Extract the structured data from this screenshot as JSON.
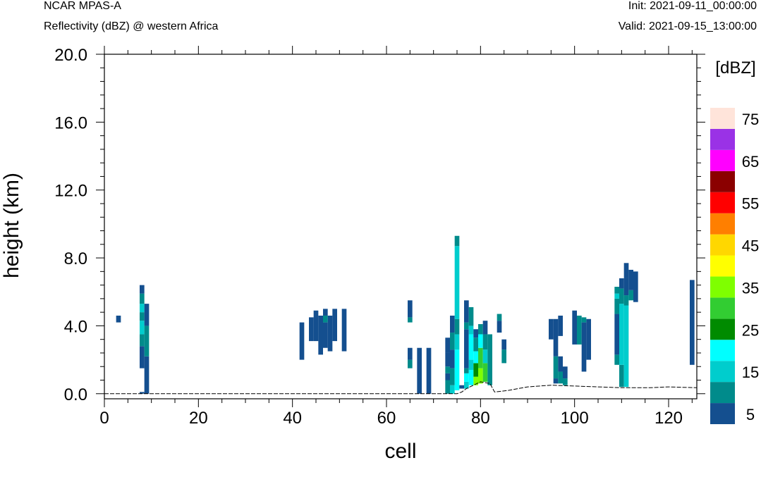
{
  "header": {
    "model": "NCAR MPAS-A",
    "subtitle": "Reflectivity (dBZ) @ western Africa",
    "init": "Init: 2021-09-11_00:00:00",
    "valid": "Valid: 2021-09-15_13:00:00"
  },
  "chart_data": {
    "type": "heatmap",
    "xlabel": "cell",
    "ylabel": "height (km)",
    "xlim": [
      0,
      126
    ],
    "ylim": [
      -0.3,
      20.0
    ],
    "x_ticks": [
      "0",
      "20",
      "40",
      "60",
      "80",
      "100",
      "120"
    ],
    "y_ticks": [
      "0.0",
      "4.0",
      "8.0",
      "12.0",
      "16.0",
      "20.0"
    ],
    "grid": false,
    "legend": {
      "title": "[dBZ]",
      "placement": "right",
      "labels": [
        "5",
        "15",
        "25",
        "35",
        "45",
        "55",
        "65",
        "75"
      ],
      "bins": [
        {
          "range": [
            0,
            10
          ],
          "color": "#144f8f"
        },
        {
          "range": [
            10,
            15
          ],
          "color": "#008b8b"
        },
        {
          "range": [
            15,
            20
          ],
          "color": "#00cdcd"
        },
        {
          "range": [
            20,
            25
          ],
          "color": "#00ffff"
        },
        {
          "range": [
            25,
            30
          ],
          "color": "#008b00"
        },
        {
          "range": [
            30,
            35
          ],
          "color": "#32cd32"
        },
        {
          "range": [
            35,
            40
          ],
          "color": "#7fff00"
        },
        {
          "range": [
            40,
            45
          ],
          "color": "#ffff00"
        },
        {
          "range": [
            45,
            50
          ],
          "color": "#ffd700"
        },
        {
          "range": [
            50,
            55
          ],
          "color": "#ff7f00"
        },
        {
          "range": [
            55,
            60
          ],
          "color": "#ff0000"
        },
        {
          "range": [
            60,
            65
          ],
          "color": "#8b0000"
        },
        {
          "range": [
            65,
            70
          ],
          "color": "#ff00ff"
        },
        {
          "range": [
            70,
            75
          ],
          "color": "#9a32e6"
        },
        {
          "range": [
            75,
            80
          ],
          "color": "#ffe4da"
        }
      ]
    },
    "columns": [
      {
        "cell": 3,
        "segments": [
          [
            4.2,
            4.6,
            0
          ]
        ]
      },
      {
        "cell": 8,
        "segments": [
          [
            0.0,
            0.1,
            0
          ],
          [
            1.5,
            2.8,
            0
          ],
          [
            2.8,
            3.5,
            10
          ],
          [
            3.5,
            4.3,
            15
          ],
          [
            4.3,
            4.8,
            10
          ],
          [
            4.8,
            5.3,
            15
          ],
          [
            5.3,
            5.9,
            10
          ],
          [
            5.9,
            6.4,
            0
          ]
        ]
      },
      {
        "cell": 9,
        "segments": [
          [
            0.0,
            2.2,
            0
          ],
          [
            2.2,
            4.0,
            10
          ],
          [
            4.0,
            5.3,
            0
          ]
        ]
      },
      {
        "cell": 42,
        "segments": [
          [
            2.0,
            4.2,
            0
          ]
        ]
      },
      {
        "cell": 44,
        "segments": [
          [
            3.1,
            4.5,
            0
          ]
        ]
      },
      {
        "cell": 45,
        "segments": [
          [
            3.1,
            4.9,
            0
          ]
        ]
      },
      {
        "cell": 46,
        "segments": [
          [
            2.3,
            4.6,
            0
          ]
        ]
      },
      {
        "cell": 47,
        "segments": [
          [
            2.7,
            4.2,
            0
          ],
          [
            4.2,
            4.6,
            10
          ],
          [
            4.6,
            5.0,
            0
          ]
        ]
      },
      {
        "cell": 48,
        "segments": [
          [
            2.5,
            4.6,
            0
          ]
        ]
      },
      {
        "cell": 49,
        "segments": [
          [
            3.1,
            5.0,
            0
          ]
        ]
      },
      {
        "cell": 51,
        "segments": [
          [
            2.5,
            5.0,
            0
          ]
        ]
      },
      {
        "cell": 65,
        "segments": [
          [
            1.5,
            2.0,
            10
          ],
          [
            2.0,
            2.7,
            0
          ],
          [
            4.2,
            4.5,
            10
          ],
          [
            4.5,
            5.5,
            0
          ]
        ]
      },
      {
        "cell": 67,
        "segments": [
          [
            0.0,
            2.7,
            0
          ]
        ]
      },
      {
        "cell": 69,
        "segments": [
          [
            0.0,
            2.7,
            0
          ]
        ]
      },
      {
        "cell": 73,
        "segments": [
          [
            0.0,
            0.8,
            10
          ],
          [
            0.8,
            1.2,
            0
          ],
          [
            1.2,
            1.6,
            10
          ],
          [
            1.6,
            2.4,
            0
          ],
          [
            2.4,
            3.3,
            0
          ]
        ]
      },
      {
        "cell": 74,
        "segments": [
          [
            0.0,
            0.5,
            15
          ],
          [
            0.5,
            1.5,
            10
          ],
          [
            1.5,
            2.6,
            0
          ],
          [
            2.6,
            3.6,
            10
          ],
          [
            3.6,
            4.6,
            0
          ]
        ]
      },
      {
        "cell": 75,
        "segments": [
          [
            0.2,
            2.6,
            20
          ],
          [
            2.6,
            3.5,
            15
          ],
          [
            3.5,
            4.4,
            10
          ],
          [
            4.4,
            8.7,
            15
          ],
          [
            8.7,
            9.3,
            10
          ]
        ]
      },
      {
        "cell": 76,
        "segments": [
          [
            0.3,
            0.5,
            0
          ]
        ]
      },
      {
        "cell": 77,
        "segments": [
          [
            0.3,
            0.7,
            15
          ],
          [
            0.7,
            1.2,
            20
          ],
          [
            1.2,
            1.5,
            10
          ],
          [
            1.5,
            3.8,
            0
          ],
          [
            3.8,
            4.2,
            10
          ],
          [
            4.2,
            5.5,
            0
          ]
        ]
      },
      {
        "cell": 78,
        "segments": [
          [
            0.5,
            1.4,
            20
          ],
          [
            1.4,
            2.0,
            15
          ],
          [
            2.0,
            3.5,
            20
          ],
          [
            3.5,
            4.0,
            15
          ],
          [
            4.0,
            5.1,
            10
          ]
        ]
      },
      {
        "cell": 79,
        "segments": [
          [
            0.5,
            1.0,
            35
          ],
          [
            1.0,
            1.8,
            25
          ],
          [
            1.8,
            2.5,
            20
          ],
          [
            2.5,
            3.3,
            10
          ],
          [
            3.3,
            3.8,
            0
          ]
        ]
      },
      {
        "cell": 80,
        "segments": [
          [
            0.6,
            1.5,
            35
          ],
          [
            1.5,
            2.7,
            30
          ],
          [
            2.7,
            3.5,
            20
          ],
          [
            3.5,
            4.1,
            10
          ]
        ]
      },
      {
        "cell": 81,
        "segments": [
          [
            0.7,
            1.8,
            30
          ],
          [
            1.8,
            2.6,
            15
          ],
          [
            2.6,
            3.5,
            10
          ],
          [
            3.5,
            4.3,
            0
          ]
        ]
      },
      {
        "cell": 82,
        "segments": [
          [
            0.5,
            3.5,
            10
          ]
        ]
      },
      {
        "cell": 84,
        "segments": [
          [
            3.6,
            4.3,
            0
          ],
          [
            4.3,
            4.7,
            10
          ]
        ]
      },
      {
        "cell": 85,
        "segments": [
          [
            1.8,
            2.6,
            10
          ],
          [
            2.6,
            3.2,
            0
          ]
        ]
      },
      {
        "cell": 95,
        "segments": [
          [
            3.2,
            4.4,
            0
          ]
        ]
      },
      {
        "cell": 96,
        "segments": [
          [
            0.6,
            0.9,
            0
          ],
          [
            0.9,
            2.2,
            10
          ],
          [
            2.2,
            4.4,
            0
          ]
        ]
      },
      {
        "cell": 97,
        "segments": [
          [
            0.6,
            1.3,
            10
          ],
          [
            1.3,
            2.2,
            0
          ],
          [
            3.4,
            4.6,
            0
          ]
        ]
      },
      {
        "cell": 98,
        "segments": [
          [
            0.5,
            0.9,
            10
          ],
          [
            0.9,
            1.6,
            0
          ]
        ]
      },
      {
        "cell": 100,
        "segments": [
          [
            2.9,
            4.9,
            0
          ]
        ]
      },
      {
        "cell": 101,
        "segments": [
          [
            2.9,
            4.6,
            10
          ]
        ]
      },
      {
        "cell": 102,
        "segments": [
          [
            1.3,
            4.2,
            0
          ],
          [
            4.2,
            4.5,
            10
          ]
        ]
      },
      {
        "cell": 103,
        "segments": [
          [
            2.0,
            4.4,
            0
          ]
        ]
      },
      {
        "cell": 109,
        "segments": [
          [
            1.7,
            2.3,
            10
          ],
          [
            2.3,
            4.7,
            0
          ],
          [
            4.7,
            5.6,
            10
          ],
          [
            5.6,
            5.9,
            15
          ],
          [
            5.9,
            6.3,
            10
          ]
        ]
      },
      {
        "cell": 110,
        "segments": [
          [
            0.4,
            1.7,
            10
          ],
          [
            1.7,
            5.3,
            15
          ],
          [
            5.3,
            6.2,
            10
          ],
          [
            6.2,
            6.8,
            0
          ]
        ]
      },
      {
        "cell": 111,
        "segments": [
          [
            0.4,
            5.2,
            15
          ],
          [
            5.2,
            5.8,
            10
          ],
          [
            5.8,
            6.8,
            0
          ],
          [
            6.8,
            7.7,
            0
          ]
        ]
      },
      {
        "cell": 112,
        "segments": [
          [
            5.5,
            6.1,
            10
          ],
          [
            6.1,
            7.3,
            0
          ]
        ]
      },
      {
        "cell": 113,
        "segments": [
          [
            5.4,
            7.2,
            0
          ]
        ]
      },
      {
        "cell": 125,
        "segments": [
          [
            1.7,
            6.7,
            0
          ]
        ]
      }
    ],
    "terrain": [
      [
        0,
        0.0
      ],
      [
        75,
        0.0
      ],
      [
        76,
        0.1
      ],
      [
        77,
        0.3
      ],
      [
        80,
        0.7
      ],
      [
        82,
        0.6
      ],
      [
        83,
        0.1
      ],
      [
        86,
        0.2
      ],
      [
        88,
        0.3
      ],
      [
        90,
        0.4
      ],
      [
        95,
        0.5
      ],
      [
        100,
        0.45
      ],
      [
        105,
        0.4
      ],
      [
        110,
        0.35
      ],
      [
        116,
        0.35
      ],
      [
        120,
        0.4
      ],
      [
        126,
        0.35
      ]
    ]
  }
}
